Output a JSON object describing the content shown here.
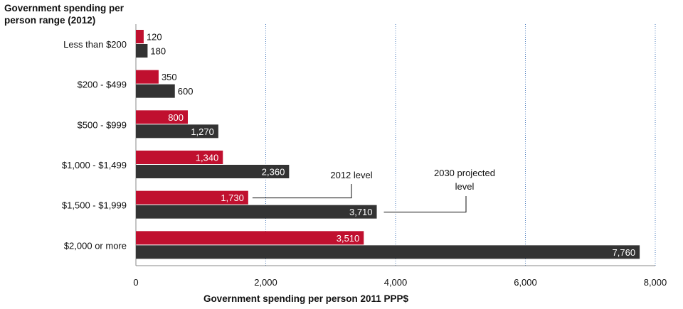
{
  "chart_data": {
    "type": "bar",
    "orientation": "horizontal",
    "title": "",
    "ylabel": "Government spending per person range (2012)",
    "xlabel": "Government spending per person 2011 PPP$",
    "categories": [
      "Less than $200",
      "$200 - $499",
      "$500 - $999",
      "$1,000 - $1,499",
      "$1,500 - $1,999",
      "$2,000 or more"
    ],
    "series": [
      {
        "color": "#c0102f",
        "values": [
          120,
          350,
          800,
          1340,
          1730,
          3510
        ],
        "labels": [
          "120",
          "350",
          "800",
          "1,340",
          "1,730",
          "3,510"
        ]
      },
      {
        "color": "#333333",
        "values": [
          180,
          600,
          1270,
          2360,
          3710,
          7760
        ],
        "labels": [
          "180",
          "600",
          "1,270",
          "2,360",
          "3,710",
          "7,760"
        ]
      }
    ],
    "xlim": [
      0,
      8000
    ],
    "xticks": [
      0,
      2000,
      4000,
      6000,
      8000
    ],
    "xtick_labels": [
      "0",
      "2,000",
      "4,000",
      "6,000",
      "8,000"
    ],
    "grid": "vertical dotted",
    "annotations": [
      {
        "text": "2012 level",
        "series": 0,
        "category": "$1,500 - $1,999"
      },
      {
        "text": "2030 projected level",
        "series": 1,
        "category": "$1,500 - $1,999"
      }
    ]
  }
}
